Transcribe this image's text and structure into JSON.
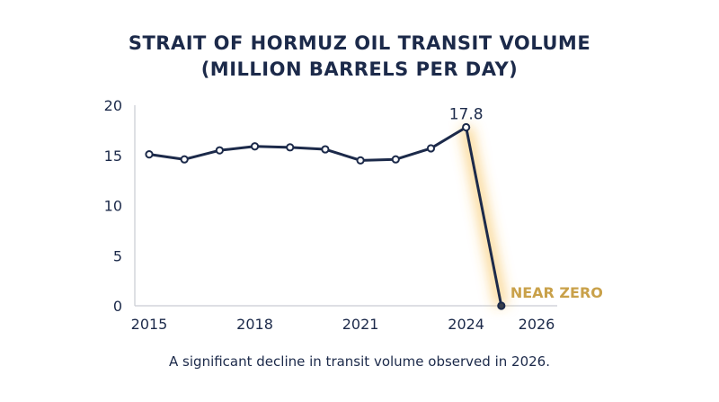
{
  "chart_data": {
    "type": "line",
    "title_lines": [
      "STRAIT OF HORMUZ OIL TRANSIT VOLUME",
      "(MILLION BARRELS PER DAY)"
    ],
    "caption": "A significant decline in transit volume observed in 2026.",
    "x_ticks": [
      "2015",
      "2018",
      "2021",
      "2024",
      "2026"
    ],
    "y_ticks": [
      "0",
      "5",
      "10",
      "15",
      "20"
    ],
    "ylim": [
      0,
      20
    ],
    "xlim": [
      2015,
      2026
    ],
    "series": [
      {
        "x": [
          2015,
          2016,
          2017,
          2018,
          2019,
          2020,
          2021,
          2022,
          2023,
          2024,
          2025
        ],
        "values": [
          15.1,
          14.6,
          15.5,
          15.9,
          15.8,
          15.6,
          14.5,
          14.6,
          15.7,
          17.8,
          0.0
        ]
      }
    ],
    "annotations": [
      {
        "label": "17.8",
        "x": 2024,
        "y": 17.8,
        "color": "#1c2a4a"
      },
      {
        "label": "NEAR ZERO",
        "x": 2025,
        "y": 0.0,
        "color": "#c9a14a"
      }
    ],
    "line_color": "#1c2a4a",
    "glow_color": "#f5b73a",
    "grid": false
  }
}
